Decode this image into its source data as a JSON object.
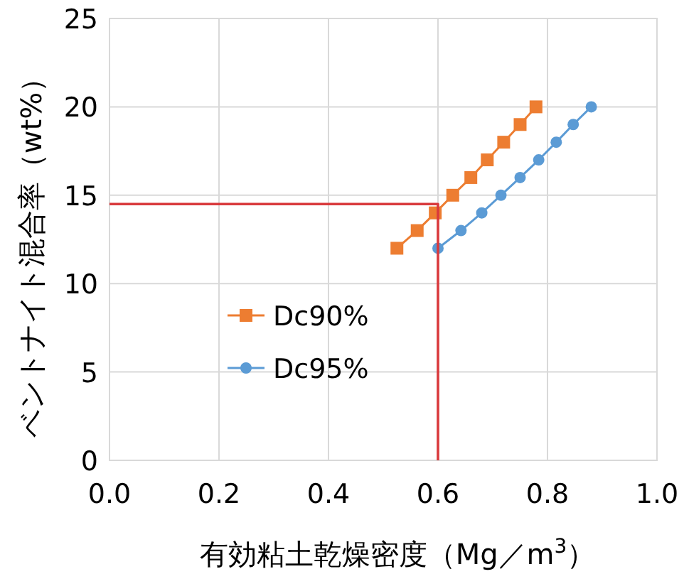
{
  "chart_data": {
    "type": "line",
    "xlabel": "有効粘土乾燥密度（Mg／m$^{3}$）",
    "ylabel": "ベントナイト混合率（wt%）",
    "xlim": [
      0,
      1
    ],
    "xticks": [
      {
        "value": 0,
        "label": "0.0"
      },
      0.2,
      0.4,
      0.6,
      0.8,
      {
        "value": 1,
        "label": "1.0"
      }
    ],
    "ylim": [
      0,
      25
    ],
    "yticks": [
      0,
      5,
      10,
      15,
      20,
      25
    ],
    "grid": true,
    "legend": "bottom",
    "series": [
      {
        "name": "Dc90%",
        "color": "#ed7d31",
        "marker": "square",
        "x": [
          0.525,
          0.562,
          0.595,
          0.627,
          0.66,
          0.69,
          0.72,
          0.75,
          0.779
        ],
        "values": [
          12,
          13,
          14,
          15,
          16,
          17,
          18,
          19,
          20
        ]
      },
      {
        "name": "Dc95%",
        "color": "#5b9bd5",
        "marker": "circle",
        "x": [
          0.6,
          0.642,
          0.68,
          0.715,
          0.75,
          0.784,
          0.816,
          0.847,
          0.88
        ],
        "values": [
          12,
          13,
          14,
          15,
          16,
          17,
          18,
          19,
          20
        ]
      },
      {
        "color": "#d9393c",
        "marker": "none",
        "x": [
          0,
          0.6,
          0.6
        ],
        "values": [
          14.5,
          14.5,
          0
        ]
      }
    ]
  }
}
